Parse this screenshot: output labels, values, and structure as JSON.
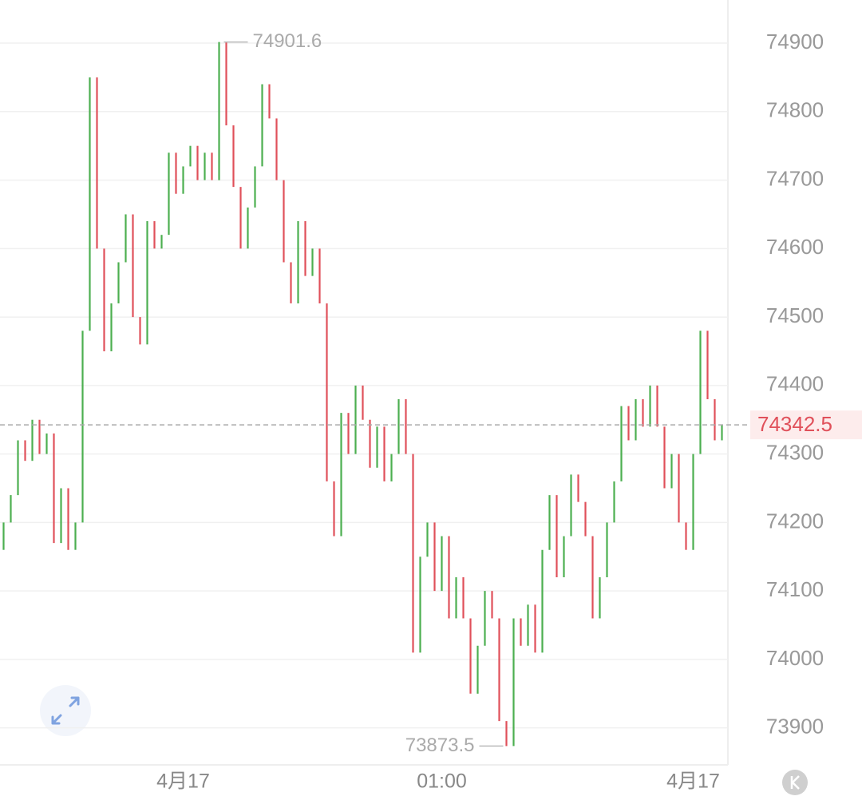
{
  "chart_data": {
    "type": "ohlc-bars",
    "up_color": "#4caf50",
    "down_color": "#e0505a",
    "open": [
      74160,
      74200,
      74240,
      74320,
      74290,
      74350,
      74300,
      74330,
      74170,
      74250,
      74160,
      74200,
      74480,
      74850,
      74600,
      74450,
      74520,
      74580,
      74650,
      74500,
      74460,
      74640,
      74600,
      74620,
      74740,
      74680,
      74720,
      74750,
      74700,
      74740,
      74700,
      74901.6,
      74780,
      74690,
      74600,
      74660,
      74720,
      74840,
      74790,
      74700,
      74580,
      74520,
      74640,
      74560,
      74600,
      74520,
      74260,
      74180,
      74360,
      74300,
      74400,
      74350,
      74280,
      74340,
      74260,
      74300,
      74380,
      74300,
      74010,
      74150,
      74200,
      74100,
      74180,
      74060,
      74120,
      74060,
      73950,
      74020,
      74100,
      74060,
      73910,
      73873.5,
      74060,
      74020,
      74080,
      74010,
      74160,
      74240,
      74120,
      74180,
      74270,
      74230,
      74180,
      74060,
      74120,
      74200,
      74260,
      74370,
      74320,
      74380,
      74340,
      74400,
      74340,
      74250,
      74300,
      74200,
      74160,
      74300,
      74480,
      74380,
      74320
    ],
    "close": [
      74200,
      74240,
      74320,
      74290,
      74350,
      74300,
      74330,
      74170,
      74250,
      74160,
      74200,
      74480,
      74850,
      74600,
      74450,
      74520,
      74580,
      74650,
      74500,
      74460,
      74640,
      74600,
      74620,
      74740,
      74680,
      74720,
      74750,
      74700,
      74740,
      74700,
      74901.6,
      74780,
      74690,
      74600,
      74660,
      74720,
      74840,
      74790,
      74700,
      74580,
      74520,
      74640,
      74560,
      74600,
      74520,
      74260,
      74180,
      74360,
      74300,
      74400,
      74350,
      74280,
      74340,
      74260,
      74300,
      74380,
      74300,
      74010,
      74150,
      74200,
      74100,
      74180,
      74060,
      74120,
      74060,
      73950,
      74020,
      74100,
      74060,
      73910,
      73873.5,
      74060,
      74020,
      74080,
      74010,
      74160,
      74240,
      74120,
      74180,
      74270,
      74230,
      74180,
      74060,
      74120,
      74200,
      74260,
      74370,
      74320,
      74380,
      74340,
      74400,
      74340,
      74250,
      74300,
      74200,
      74160,
      74300,
      74480,
      74380,
      74320,
      74342.5
    ],
    "xlim": [
      -0.5,
      100.5
    ],
    "xticks": [
      {
        "value": 25,
        "label": "4月17"
      },
      {
        "value": 61,
        "label": "01:00"
      },
      {
        "value": 96,
        "label": "4月17"
      }
    ],
    "ylim": [
      73846,
      74963
    ],
    "yticks": [
      73900,
      74000,
      74100,
      74200,
      74300,
      74400,
      74500,
      74600,
      74700,
      74800,
      74900
    ],
    "grid": true
  }
}
